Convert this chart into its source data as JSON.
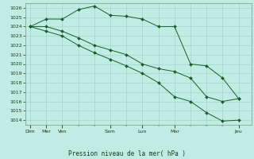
{
  "title": "Pression niveau de la mer( hPa )",
  "bg_color": "#c0ece4",
  "grid_color": "#99ccc4",
  "line_color": "#1a5c2a",
  "marker_color": "#1a5c2a",
  "ylim": [
    1013.5,
    1026.5
  ],
  "yticks": [
    1014,
    1015,
    1016,
    1017,
    1018,
    1019,
    1020,
    1021,
    1022,
    1023,
    1024,
    1025,
    1026
  ],
  "major_xtick_labels": [
    "Dim",
    "Mer",
    "Ven",
    "Sam",
    "Lun",
    "Mar",
    "Jeu"
  ],
  "major_xtick_positions": [
    0,
    1,
    2,
    5,
    7,
    9,
    13
  ],
  "xlim": [
    -0.3,
    13.8
  ],
  "series1_x": [
    0,
    1,
    2,
    3,
    4,
    5,
    6,
    7,
    8,
    9,
    10,
    11,
    12,
    13
  ],
  "series1_y": [
    1024.0,
    1024.8,
    1024.8,
    1025.8,
    1026.2,
    1025.2,
    1025.1,
    1024.8,
    1024.0,
    1024.0,
    1020.0,
    1019.8,
    1018.5,
    1016.3
  ],
  "series2_x": [
    0,
    1,
    2,
    3,
    4,
    5,
    6,
    7,
    8,
    9,
    10,
    11,
    12,
    13
  ],
  "series2_y": [
    1024.0,
    1024.0,
    1023.5,
    1022.8,
    1022.0,
    1021.5,
    1021.0,
    1020.0,
    1019.5,
    1019.2,
    1018.5,
    1016.5,
    1016.0,
    1016.3
  ],
  "series3_x": [
    0,
    1,
    2,
    3,
    4,
    5,
    6,
    7,
    8,
    9,
    10,
    11,
    12,
    13
  ],
  "series3_y": [
    1024.0,
    1023.5,
    1023.0,
    1022.0,
    1021.2,
    1020.5,
    1019.8,
    1019.0,
    1018.0,
    1016.5,
    1016.0,
    1014.8,
    1013.9,
    1014.0
  ]
}
